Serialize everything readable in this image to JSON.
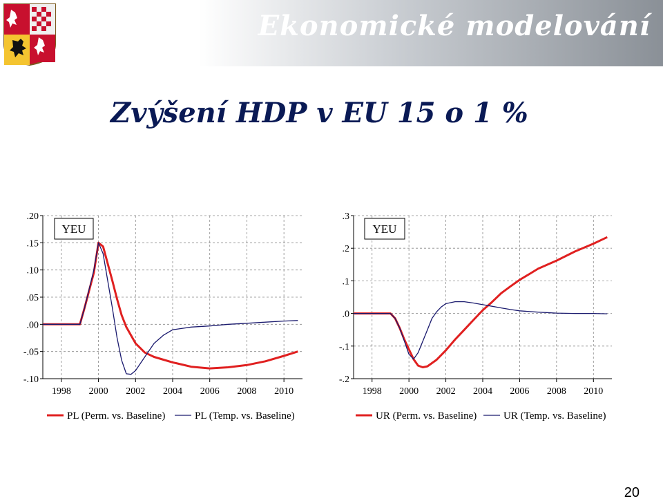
{
  "slide": {
    "title": "Ekonomické modelování",
    "subtitle": "Zvýšení HDP v EU 15 o 1 %",
    "page_number": "20"
  },
  "colors": {
    "perm": "#e02020",
    "temp": "#1a1a6e",
    "dark": "#0a1a55"
  },
  "chart_data": [
    {
      "type": "line",
      "box_label": "YEU",
      "ylim": [
        -0.1,
        0.2
      ],
      "yticks": [
        -0.1,
        -0.05,
        0.0,
        0.05,
        0.1,
        0.15,
        0.2
      ],
      "ytick_labels": [
        "-.10",
        "-.05",
        ".00",
        ".05",
        ".10",
        ".15",
        ".20"
      ],
      "xlim": [
        1997,
        2011
      ],
      "xticks": [
        1998,
        2000,
        2002,
        2004,
        2006,
        2008,
        2010
      ],
      "xtick_labels": [
        "1998",
        "2000",
        "2002",
        "2004",
        "2006",
        "2008",
        "2010"
      ],
      "grid": true,
      "legend": "bottom",
      "series": [
        {
          "name": "PL (Perm. vs. Baseline)",
          "color": "#e02020",
          "x": [
            1997,
            1999,
            1999.25,
            1999.75,
            2000.0,
            2000.25,
            2000.75,
            2001.0,
            2001.25,
            2001.5,
            2002.0,
            2002.5,
            2003.0,
            2003.5,
            2004.0,
            2004.5,
            2005.0,
            2006.0,
            2007.0,
            2008.0,
            2009.0,
            2010.0,
            2010.75
          ],
          "y": [
            0.0,
            0.0,
            0.03,
            0.095,
            0.15,
            0.143,
            0.08,
            0.047,
            0.017,
            -0.005,
            -0.035,
            -0.052,
            -0.06,
            -0.065,
            -0.07,
            -0.074,
            -0.078,
            -0.081,
            -0.079,
            -0.075,
            -0.068,
            -0.058,
            -0.05
          ]
        },
        {
          "name": "PL (Temp. vs. Baseline)",
          "color": "#1a1a6e",
          "x": [
            1997,
            1999,
            1999.25,
            1999.75,
            2000.0,
            2000.25,
            2000.75,
            2001.0,
            2001.25,
            2001.5,
            2001.75,
            2002.0,
            2002.5,
            2003.0,
            2003.5,
            2004.0,
            2005.0,
            2006.0,
            2007.0,
            2008.0,
            2009.0,
            2010.0,
            2010.75
          ],
          "y": [
            0.0,
            0.0,
            0.03,
            0.1,
            0.15,
            0.13,
            0.03,
            -0.024,
            -0.066,
            -0.091,
            -0.092,
            -0.085,
            -0.06,
            -0.035,
            -0.02,
            -0.01,
            -0.005,
            -0.003,
            0.0,
            0.002,
            0.004,
            0.006,
            0.007
          ]
        }
      ]
    },
    {
      "type": "line",
      "box_label": "YEU",
      "ylim": [
        -0.2,
        0.3
      ],
      "yticks": [
        -0.2,
        -0.1,
        0.0,
        0.1,
        0.2,
        0.3
      ],
      "ytick_labels": [
        "-.2",
        "-.1",
        ".0",
        ".1",
        ".2",
        ".3"
      ],
      "xlim": [
        1997,
        2011
      ],
      "xticks": [
        1998,
        2000,
        2002,
        2004,
        2006,
        2008,
        2010
      ],
      "xtick_labels": [
        "1998",
        "2000",
        "2002",
        "2004",
        "2006",
        "2008",
        "2010"
      ],
      "grid": true,
      "legend": "bottom",
      "series": [
        {
          "name": "UR (Perm. vs. Baseline)",
          "color": "#e02020",
          "x": [
            1997,
            1999,
            1999.25,
            1999.5,
            1999.75,
            2000.0,
            2000.25,
            2000.5,
            2000.75,
            2001.0,
            2001.5,
            2002.0,
            2002.5,
            2003.0,
            2003.5,
            2004.0,
            2004.5,
            2005.0,
            2005.5,
            2006.0,
            2006.5,
            2007.0,
            2008.0,
            2009.0,
            2010.0,
            2010.75
          ],
          "y": [
            0.0,
            0.0,
            -0.015,
            -0.045,
            -0.08,
            -0.11,
            -0.14,
            -0.16,
            -0.165,
            -0.162,
            -0.142,
            -0.113,
            -0.08,
            -0.05,
            -0.02,
            0.01,
            0.035,
            0.062,
            0.083,
            0.103,
            0.12,
            0.137,
            0.162,
            0.19,
            0.214,
            0.234
          ]
        },
        {
          "name": "UR (Temp. vs. Baseline)",
          "color": "#1a1a6e",
          "x": [
            1997,
            1999,
            1999.25,
            1999.5,
            1999.75,
            2000.0,
            2000.25,
            2000.5,
            2000.75,
            2001.0,
            2001.25,
            2001.5,
            2001.75,
            2002.0,
            2002.5,
            2003.0,
            2003.5,
            2004.0,
            2004.5,
            2005.0,
            2005.5,
            2006.0,
            2007.0,
            2008.0,
            2009.0,
            2010.0,
            2010.75
          ],
          "y": [
            0.0,
            0.0,
            -0.015,
            -0.045,
            -0.085,
            -0.125,
            -0.14,
            -0.12,
            -0.085,
            -0.05,
            -0.015,
            0.005,
            0.02,
            0.03,
            0.036,
            0.036,
            0.032,
            0.027,
            0.022,
            0.017,
            0.012,
            0.008,
            0.004,
            0.001,
            0.0,
            0.0,
            -0.001
          ]
        }
      ]
    }
  ]
}
